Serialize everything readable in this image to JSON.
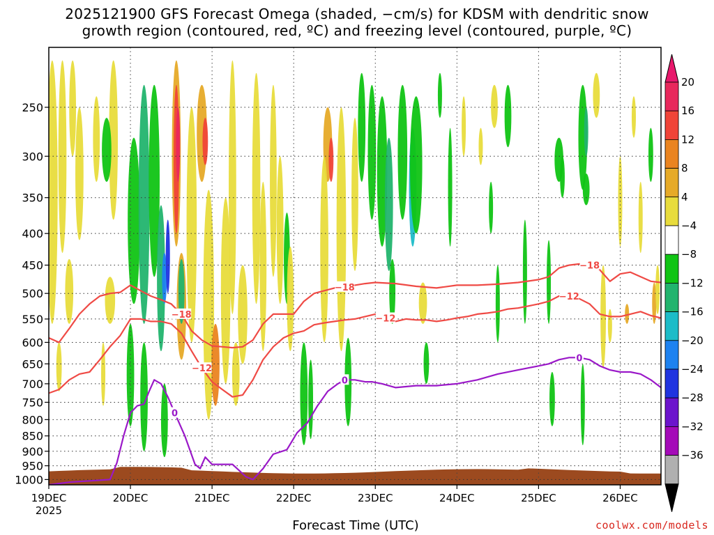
{
  "title_line1": "2025121900 GFS Forecast Omega (shaded, −cm/s) for KDSM with dendritic snow",
  "title_line2": "growth region (contoured, red, ºC) and freezing level (contoured, purple, ºC)",
  "xlabel": "Forecast Time (UTC)",
  "credit": "coolwx.com/models",
  "chart_data": {
    "type": "heatmap",
    "title": "2025121900 GFS Forecast Omega (shaded, −cm/s) for KDSM with dendritic snow growth region (contoured, red, ºC) and freezing level (contoured, purple, ºC)",
    "xlabel": "Forecast Time (UTC)",
    "ylabel": "",
    "x_ticks": [
      {
        "label": "19DEC",
        "sub": "2025",
        "hours": 0
      },
      {
        "label": "20DEC",
        "hours": 24
      },
      {
        "label": "21DEC",
        "hours": 48
      },
      {
        "label": "22DEC",
        "hours": 72
      },
      {
        "label": "23DEC",
        "hours": 96
      },
      {
        "label": "24DEC",
        "hours": 120
      },
      {
        "label": "25DEC",
        "hours": 144
      },
      {
        "label": "26DEC",
        "hours": 168
      }
    ],
    "x_range_hours": [
      0,
      180
    ],
    "y_pressure_levels": [
      250,
      300,
      350,
      400,
      450,
      500,
      550,
      600,
      650,
      700,
      750,
      800,
      850,
      900,
      950,
      1000
    ],
    "y_range_hpa": [
      200,
      1020
    ],
    "y_scale": "log-pressure, inverted (surface at bottom)",
    "grid": true,
    "terrain_color": "#9c4a1f",
    "colorbar": {
      "labels": [
        "20",
        "16",
        "12",
        "8",
        "4",
        "−4",
        "−8",
        "−12",
        "−16",
        "−20",
        "−24",
        "−28",
        "−32",
        "−36"
      ],
      "colors": [
        "#e8285c",
        "#f04438",
        "#ea8420",
        "#e6aa28",
        "#e8dc3c",
        "#ffffff",
        "#10c414",
        "#22b46e",
        "#1cbcc8",
        "#1e82f0",
        "#2034e0",
        "#6c14cc",
        "#a40ab8",
        "#b0b0b0"
      ],
      "top_arrow_color": "#e8186c",
      "bottom_arrow_color": "#000000"
    },
    "series": [
      {
        "name": "−18",
        "color": "#ef4a45",
        "x": [
          0,
          3,
          6,
          9,
          12,
          15,
          18,
          21,
          24,
          27,
          30,
          33,
          36,
          39,
          42,
          45,
          48,
          51,
          54,
          57,
          60,
          63,
          66,
          69,
          72,
          75,
          78,
          81,
          84,
          87,
          90,
          93,
          96,
          102,
          108,
          114,
          120,
          126,
          132,
          138,
          144,
          147,
          150,
          153,
          156,
          159,
          162,
          165,
          168,
          171,
          174,
          177,
          180
        ],
        "y": [
          590,
          600,
          570,
          540,
          520,
          505,
          500,
          498,
          485,
          495,
          505,
          512,
          520,
          540,
          575,
          595,
          608,
          610,
          612,
          610,
          595,
          560,
          540,
          540,
          540,
          515,
          500,
          495,
          490,
          488,
          485,
          482,
          480,
          482,
          487,
          490,
          485,
          485,
          483,
          480,
          475,
          470,
          455,
          450,
          448,
          450,
          458,
          478,
          465,
          462,
          470,
          478,
          480
        ]
      },
      {
        "name": "−12",
        "color": "#ef4a45",
        "x": [
          0,
          3,
          6,
          9,
          12,
          15,
          18,
          21,
          24,
          27,
          30,
          33,
          36,
          39,
          42,
          45,
          48,
          51,
          54,
          57,
          60,
          63,
          66,
          69,
          72,
          75,
          78,
          81,
          84,
          87,
          90,
          93,
          96,
          99,
          102,
          105,
          108,
          111,
          114,
          117,
          120,
          123,
          126,
          129,
          132,
          135,
          138,
          141,
          144,
          147,
          150,
          153,
          156,
          159,
          162,
          165,
          168,
          171,
          174,
          177,
          180
        ],
        "y": [
          725,
          715,
          690,
          675,
          670,
          640,
          610,
          585,
          550,
          550,
          555,
          555,
          560,
          580,
          620,
          660,
          695,
          715,
          735,
          730,
          690,
          640,
          610,
          590,
          580,
          575,
          562,
          558,
          555,
          552,
          550,
          545,
          540,
          548,
          555,
          550,
          552,
          552,
          555,
          552,
          548,
          545,
          540,
          538,
          535,
          530,
          528,
          524,
          520,
          515,
          505,
          505,
          510,
          520,
          540,
          545,
          545,
          540,
          535,
          543,
          548
        ]
      },
      {
        "name": "0",
        "color": "#9a18c8",
        "x": [
          0,
          6,
          12,
          18,
          20,
          22,
          24,
          26,
          28,
          29.5,
          31,
          33,
          35,
          37,
          40,
          43,
          44.5,
          46,
          48,
          54,
          58,
          60,
          63,
          66,
          70,
          73,
          76,
          79,
          82,
          85,
          87,
          90,
          93,
          95,
          98,
          102,
          108,
          114,
          120,
          126,
          132,
          138,
          144,
          147,
          150,
          153,
          156,
          159,
          162,
          165,
          168,
          171,
          174,
          177,
          180
        ],
        "y": [
          1020,
          1010,
          1005,
          1000,
          940,
          850,
          780,
          760,
          755,
          720,
          690,
          700,
          735,
          780,
          850,
          945,
          960,
          920,
          945,
          945,
          990,
          1000,
          960,
          910,
          895,
          840,
          810,
          760,
          720,
          700,
          690,
          690,
          695,
          695,
          700,
          710,
          705,
          705,
          700,
          690,
          675,
          665,
          655,
          650,
          640,
          635,
          635,
          640,
          655,
          665,
          670,
          670,
          675,
          690,
          710
        ]
      }
    ]
  }
}
